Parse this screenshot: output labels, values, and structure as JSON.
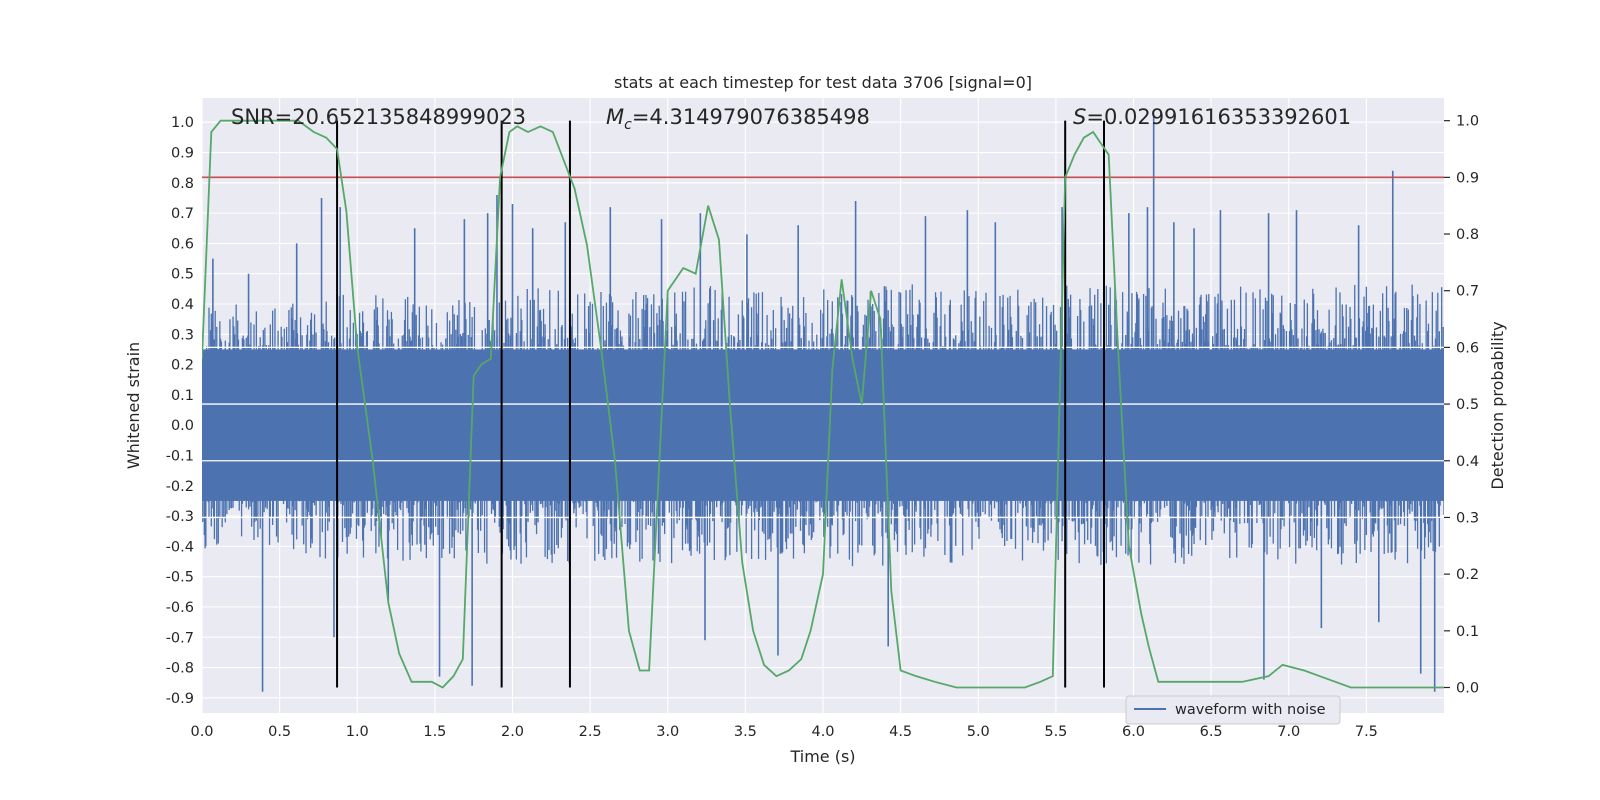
{
  "chart_data": {
    "type": "line",
    "title": "stats at each timestep for test data 3706 [signal=0]",
    "xlabel": "Time (s)",
    "ylabel": "Whitened strain",
    "y2label": "Detection probability",
    "xlim": [
      0.0,
      8.0
    ],
    "ylim": [
      -0.95,
      1.08
    ],
    "y2lim": [
      -0.045,
      1.04
    ],
    "xticks": [
      "0.0",
      "0.5",
      "1.0",
      "1.5",
      "2.0",
      "2.5",
      "3.0",
      "3.5",
      "4.0",
      "4.5",
      "5.0",
      "5.5",
      "6.0",
      "6.5",
      "7.0",
      "7.5"
    ],
    "yticks": [
      "-0.9",
      "-0.8",
      "-0.7",
      "-0.6",
      "-0.5",
      "-0.4",
      "-0.3",
      "-0.2",
      "-0.1",
      "0.0",
      "0.1",
      "0.2",
      "0.3",
      "0.4",
      "0.5",
      "0.6",
      "0.7",
      "0.8",
      "0.9",
      "1.0"
    ],
    "y2ticks": [
      "0.0",
      "0.1",
      "0.2",
      "0.3",
      "0.4",
      "0.5",
      "0.6",
      "0.7",
      "0.8",
      "0.9",
      "1.0"
    ],
    "grid": true,
    "annotations": {
      "snr": "SNR=20.652135848999023",
      "mc_symbol": "M",
      "mc_sub": "c",
      "mc_value": "=4.314979076385498",
      "s_symbol": "S",
      "s_value": "=0.02991616353392601"
    },
    "threshold": 0.9,
    "vlines": [
      0.87,
      1.93,
      2.37,
      5.56,
      5.81
    ],
    "legend": {
      "label": "waveform with noise",
      "position": "lower-right"
    },
    "series": [
      {
        "name": "waveform with noise",
        "color": "#4c72b0",
        "envelope_t": [
          0.0,
          0.25,
          0.5,
          0.75,
          1.0,
          1.25,
          1.5,
          1.75,
          2.0,
          2.25,
          2.5,
          2.75,
          3.0,
          3.25,
          3.5,
          3.75,
          4.0,
          4.25,
          4.5,
          4.75,
          5.0,
          5.25,
          5.5,
          5.75,
          6.0,
          6.25,
          6.5,
          6.75,
          7.0,
          7.25,
          7.5,
          7.75,
          8.0
        ],
        "envelope_upper": [
          0.42,
          0.4,
          0.4,
          0.42,
          0.45,
          0.42,
          0.44,
          0.42,
          0.46,
          0.45,
          0.44,
          0.44,
          0.45,
          0.46,
          0.45,
          0.44,
          0.45,
          0.46,
          0.47,
          0.46,
          0.45,
          0.45,
          0.46,
          0.47,
          0.46,
          0.45,
          0.46,
          0.46,
          0.46,
          0.46,
          0.47,
          0.47,
          0.46
        ],
        "envelope_lower": [
          -0.42,
          -0.42,
          -0.42,
          -0.44,
          -0.45,
          -0.45,
          -0.46,
          -0.46,
          -0.46,
          -0.46,
          -0.46,
          -0.46,
          -0.46,
          -0.45,
          -0.45,
          -0.44,
          -0.45,
          -0.47,
          -0.47,
          -0.47,
          -0.47,
          -0.46,
          -0.46,
          -0.47,
          -0.47,
          -0.46,
          -0.46,
          -0.46,
          -0.46,
          -0.46,
          -0.46,
          -0.47,
          -0.46
        ],
        "peak_t": [
          0.07,
          0.3,
          0.39,
          0.61,
          0.77,
          0.85,
          0.89,
          1.2,
          1.37,
          1.53,
          1.69,
          1.74,
          1.84,
          1.9,
          1.93,
          2.0,
          2.13,
          2.34,
          2.63,
          2.96,
          3.21,
          3.24,
          3.51,
          3.71,
          3.84,
          4.21,
          4.42,
          4.66,
          4.93,
          5.11,
          5.54,
          5.81,
          5.97,
          6.09,
          6.13,
          6.26,
          6.39,
          6.56,
          6.84,
          6.87,
          7.05,
          7.21,
          7.45,
          7.58,
          7.67,
          7.85,
          7.94
        ],
        "peak_v": [
          0.55,
          0.5,
          -0.88,
          0.6,
          0.75,
          -0.7,
          0.72,
          -0.58,
          0.65,
          -0.83,
          0.68,
          -0.86,
          0.7,
          0.76,
          0.61,
          0.73,
          0.65,
          0.67,
          0.72,
          0.68,
          0.7,
          -0.71,
          0.63,
          -0.76,
          0.66,
          0.74,
          -0.73,
          0.69,
          0.71,
          0.67,
          0.72,
          0.86,
          0.7,
          0.72,
          1.02,
          0.67,
          0.65,
          0.71,
          -0.84,
          0.7,
          0.71,
          -0.67,
          0.66,
          -0.65,
          0.84,
          -0.82,
          -0.88
        ]
      },
      {
        "name": "Detection probability",
        "color": "#55a868",
        "axis": "right",
        "x": [
          0.0,
          0.06,
          0.12,
          0.2,
          0.3,
          0.4,
          0.5,
          0.62,
          0.72,
          0.8,
          0.87,
          0.93,
          1.0,
          1.1,
          1.2,
          1.27,
          1.35,
          1.42,
          1.48,
          1.55,
          1.62,
          1.68,
          1.75,
          1.8,
          1.86,
          1.92,
          1.98,
          2.03,
          2.1,
          2.18,
          2.26,
          2.33,
          2.4,
          2.48,
          2.57,
          2.66,
          2.75,
          2.82,
          2.88,
          3.0,
          3.1,
          3.18,
          3.26,
          3.33,
          3.4,
          3.48,
          3.55,
          3.62,
          3.7,
          3.78,
          3.86,
          3.92,
          4.0,
          4.06,
          4.12,
          4.19,
          4.25,
          4.31,
          4.37,
          4.44,
          4.5,
          4.6,
          4.72,
          4.86,
          5.0,
          5.15,
          5.3,
          5.4,
          5.48,
          5.56,
          5.62,
          5.68,
          5.74,
          5.79,
          5.84,
          5.9,
          5.97,
          6.05,
          6.1,
          6.16,
          6.25,
          6.35,
          6.5,
          6.7,
          6.87,
          6.96,
          7.1,
          7.2,
          7.3,
          7.4,
          7.55,
          7.7,
          7.85,
          8.0
        ],
        "y": [
          0.58,
          0.98,
          1.0,
          1.0,
          1.0,
          1.0,
          1.0,
          1.0,
          0.98,
          0.97,
          0.95,
          0.84,
          0.6,
          0.4,
          0.15,
          0.06,
          0.01,
          0.01,
          0.01,
          0.0,
          0.02,
          0.05,
          0.55,
          0.57,
          0.58,
          0.9,
          0.98,
          0.99,
          0.98,
          0.99,
          0.98,
          0.93,
          0.88,
          0.78,
          0.6,
          0.4,
          0.1,
          0.03,
          0.03,
          0.7,
          0.74,
          0.73,
          0.85,
          0.79,
          0.5,
          0.22,
          0.1,
          0.04,
          0.02,
          0.03,
          0.05,
          0.1,
          0.2,
          0.56,
          0.72,
          0.58,
          0.5,
          0.7,
          0.65,
          0.17,
          0.03,
          0.02,
          0.01,
          0.0,
          0.0,
          0.0,
          0.0,
          0.01,
          0.02,
          0.9,
          0.94,
          0.97,
          0.98,
          0.96,
          0.94,
          0.6,
          0.25,
          0.13,
          0.07,
          0.01,
          0.01,
          0.01,
          0.01,
          0.01,
          0.02,
          0.04,
          0.03,
          0.02,
          0.01,
          0.0,
          0.0,
          0.0,
          0.0,
          0.0
        ]
      }
    ]
  }
}
